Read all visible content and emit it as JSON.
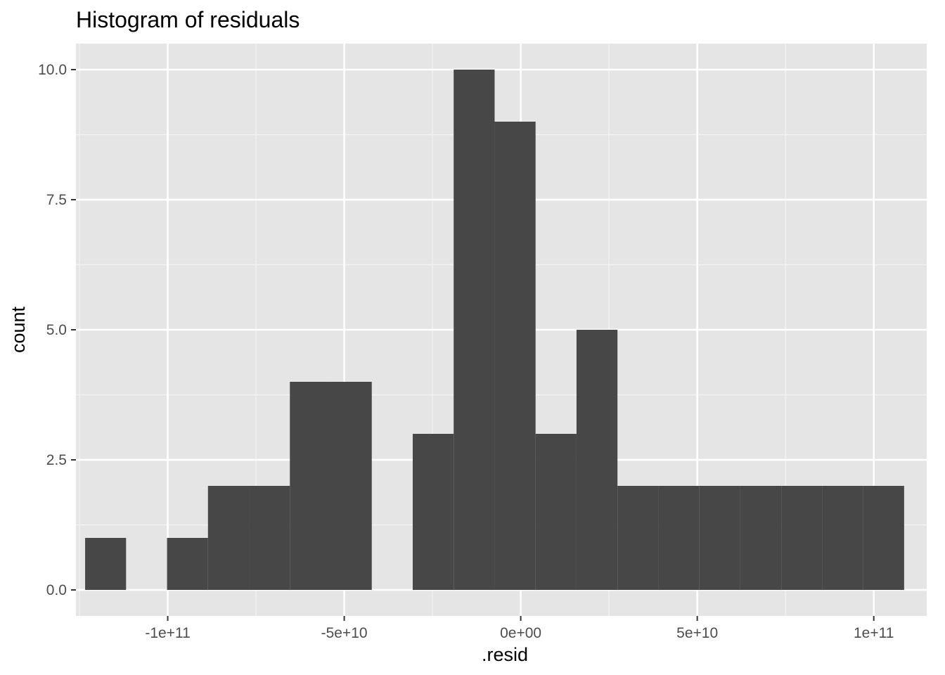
{
  "chart_data": {
    "type": "bar",
    "subtype": "histogram",
    "title": "Histogram of residuals",
    "xlabel": ".resid",
    "ylabel": "count",
    "binwidth": 11600000000,
    "bins": [
      {
        "start": -123400000000,
        "end": -111800000000,
        "count": 1
      },
      {
        "start": -111800000000,
        "end": -100200000000,
        "count": 0
      },
      {
        "start": -100200000000,
        "end": -88600000000,
        "count": 1
      },
      {
        "start": -88600000000,
        "end": -77000000000,
        "count": 2
      },
      {
        "start": -77000000000,
        "end": -65400000000,
        "count": 2
      },
      {
        "start": -65400000000,
        "end": -53800000000,
        "count": 4
      },
      {
        "start": -53800000000,
        "end": -42200000000,
        "count": 4
      },
      {
        "start": -42200000000,
        "end": -30600000000,
        "count": 0
      },
      {
        "start": -30600000000,
        "end": -19000000000,
        "count": 3
      },
      {
        "start": -19000000000,
        "end": -7400000000,
        "count": 10
      },
      {
        "start": -7400000000,
        "end": 4200000000,
        "count": 9
      },
      {
        "start": 4200000000,
        "end": 15800000000,
        "count": 3
      },
      {
        "start": 15800000000,
        "end": 27400000000,
        "count": 5
      },
      {
        "start": 27400000000,
        "end": 39000000000,
        "count": 2
      },
      {
        "start": 39000000000,
        "end": 50600000000,
        "count": 2
      },
      {
        "start": 50600000000,
        "end": 62200000000,
        "count": 2
      },
      {
        "start": 62200000000,
        "end": 73800000000,
        "count": 2
      },
      {
        "start": 73800000000,
        "end": 85400000000,
        "count": 2
      },
      {
        "start": 85400000000,
        "end": 97000000000,
        "count": 2
      },
      {
        "start": 97000000000,
        "end": 108600000000,
        "count": 2
      }
    ],
    "xlim": [
      -126000000000,
      115000000000
    ],
    "ylim": [
      -0.5,
      10.5
    ],
    "x_ticks": [
      {
        "value": -100000000000,
        "label": "-1e+11"
      },
      {
        "value": -50000000000,
        "label": "-5e+10"
      },
      {
        "value": 0,
        "label": "0e+00"
      },
      {
        "value": 50000000000,
        "label": "5e+10"
      },
      {
        "value": 100000000000,
        "label": "1e+11"
      }
    ],
    "y_ticks": [
      {
        "value": 0,
        "label": "0.0"
      },
      {
        "value": 2.5,
        "label": "2.5"
      },
      {
        "value": 5,
        "label": "5.0"
      },
      {
        "value": 7.5,
        "label": "7.5"
      },
      {
        "value": 10,
        "label": "10.0"
      }
    ],
    "grid": true,
    "colors": {
      "panel": "#e5e5e5",
      "grid_major": "#ffffff",
      "grid_minor": "#f2f2f2",
      "bar": "#474747",
      "tick": "#333333"
    }
  }
}
